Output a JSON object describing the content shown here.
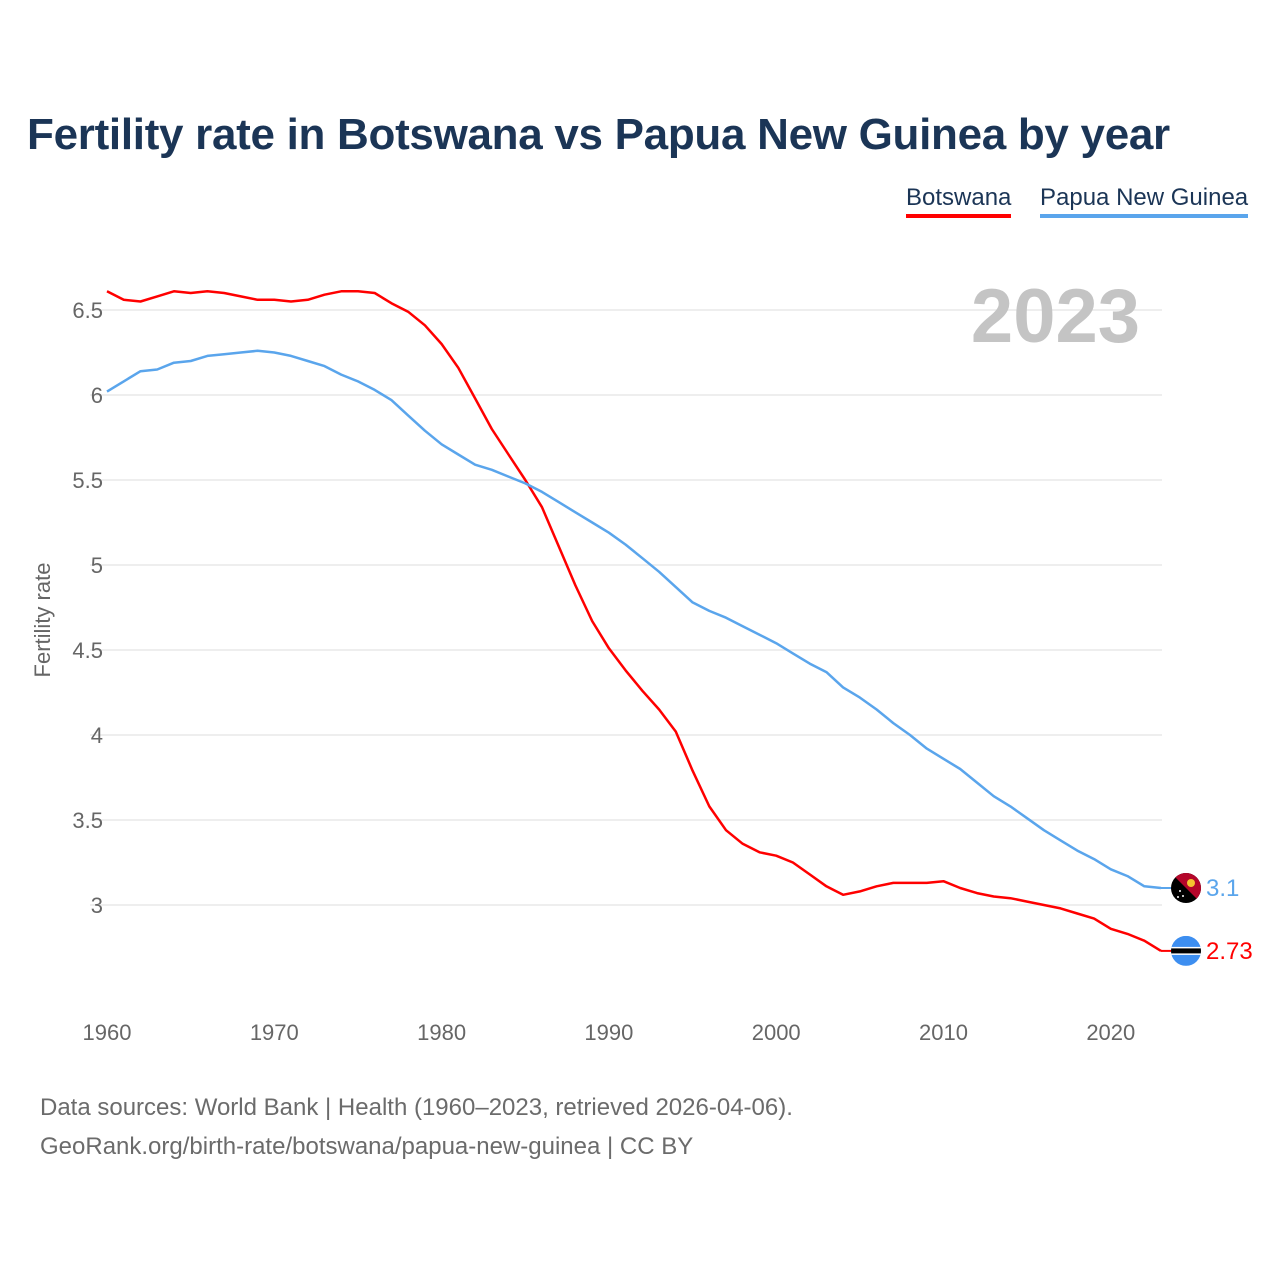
{
  "chart_data": {
    "type": "line",
    "title": "Fertility rate in Botswana vs Papua New Guinea by year",
    "xlabel": "",
    "ylabel": "Fertility rate",
    "year_watermark": "2023",
    "xlim": [
      1960,
      2023
    ],
    "ylim": [
      2.5,
      6.7
    ],
    "x_ticks": [
      1960,
      1970,
      1980,
      1990,
      2000,
      2010,
      2020
    ],
    "y_ticks": [
      3,
      3.5,
      4,
      4.5,
      5,
      5.5,
      6,
      6.5
    ],
    "y_tick_labels": [
      "3",
      "3.5",
      "4",
      "4.5",
      "5",
      "5.5",
      "6",
      "6.5"
    ],
    "x_tick_labels": [
      "1960",
      "1970",
      "1980",
      "1990",
      "2000",
      "2010",
      "2020"
    ],
    "grid": true,
    "legend_position": "top-right",
    "x_start": 1960,
    "series": [
      {
        "name": "Botswana",
        "color": "#ff0000",
        "end_label": "2.73",
        "flag": "botswana-flag",
        "values": [
          6.61,
          6.56,
          6.55,
          6.58,
          6.61,
          6.6,
          6.61,
          6.6,
          6.58,
          6.56,
          6.56,
          6.55,
          6.56,
          6.59,
          6.61,
          6.61,
          6.6,
          6.54,
          6.49,
          6.41,
          6.3,
          6.16,
          5.98,
          5.8,
          5.65,
          5.5,
          5.34,
          5.11,
          4.88,
          4.67,
          4.51,
          4.38,
          4.26,
          4.15,
          4.02,
          3.79,
          3.58,
          3.44,
          3.36,
          3.31,
          3.29,
          3.25,
          3.18,
          3.11,
          3.06,
          3.08,
          3.11,
          3.13,
          3.13,
          3.13,
          3.14,
          3.1,
          3.07,
          3.05,
          3.04,
          3.02,
          3.0,
          2.98,
          2.95,
          2.92,
          2.86,
          2.83,
          2.79,
          2.73
        ]
      },
      {
        "name": "Papua New Guinea",
        "color": "#5aa5ec",
        "end_label": "3.1",
        "flag": "papua-new-guinea-flag",
        "values": [
          6.02,
          6.08,
          6.14,
          6.15,
          6.19,
          6.2,
          6.23,
          6.24,
          6.25,
          6.26,
          6.25,
          6.23,
          6.2,
          6.17,
          6.12,
          6.08,
          6.03,
          5.97,
          5.88,
          5.79,
          5.71,
          5.65,
          5.59,
          5.56,
          5.52,
          5.48,
          5.43,
          5.37,
          5.31,
          5.25,
          5.19,
          5.12,
          5.04,
          4.96,
          4.87,
          4.78,
          4.73,
          4.69,
          4.64,
          4.59,
          4.54,
          4.48,
          4.42,
          4.37,
          4.28,
          4.22,
          4.15,
          4.07,
          4.0,
          3.92,
          3.86,
          3.8,
          3.72,
          3.64,
          3.58,
          3.51,
          3.44,
          3.38,
          3.32,
          3.27,
          3.21,
          3.17,
          3.11,
          3.1
        ]
      }
    ]
  },
  "footer": {
    "line1": "Data sources: World Bank | Health (1960–2023, retrieved 2026-04-06).",
    "line2": "GeoRank.org/birth-rate/botswana/papua-new-guinea | CC BY"
  }
}
